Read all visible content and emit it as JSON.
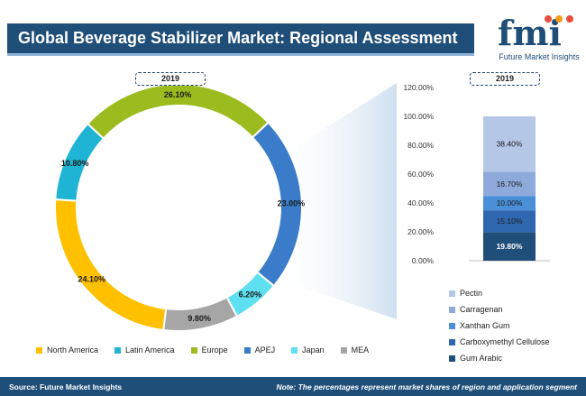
{
  "header": {
    "title": "Global Beverage Stabilizer Market: Regional Assessment",
    "logo_text": "fmi",
    "logo_subtitle": "Future Market Insights"
  },
  "year_left": "2019",
  "year_right": "2019",
  "colors": {
    "header_bg": "#1f4e79",
    "north_america": "#ffc000",
    "latin_america": "#1fb4d4",
    "europe": "#9bbb1f",
    "apej": "#3a7cc9",
    "japan": "#5ee0f0",
    "mea": "#a6a6a6",
    "pectin": "#b4c7e7",
    "carragenan": "#8eaadb",
    "xanthan_gum": "#4a8fd8",
    "carboxymethyl_cellulose": "#2f68b0",
    "gum_arabic": "#1f4e79"
  },
  "chart_data": [
    {
      "type": "pie",
      "variant": "donut",
      "categories": [
        "North America",
        "Latin America",
        "Europe",
        "APEJ",
        "Japan",
        "MEA"
      ],
      "values": [
        24.1,
        10.8,
        26.1,
        23.0,
        6.2,
        9.8
      ],
      "labels": [
        "24.10%",
        "10.80%",
        "26.10%",
        "23.00%",
        "6.20%",
        "9.80%"
      ],
      "legend_position": "bottom"
    },
    {
      "type": "bar",
      "variant": "stacked-100",
      "categories": [
        "2019"
      ],
      "series": [
        {
          "name": "Gum Arabic",
          "values": [
            19.8
          ],
          "label": "19.80%"
        },
        {
          "name": "Carboxymethyl Cellulose",
          "values": [
            15.1
          ],
          "label": "15.10%"
        },
        {
          "name": "Xanthan Gum",
          "values": [
            10.0
          ],
          "label": "10.00%"
        },
        {
          "name": "Carragenan",
          "values": [
            16.7
          ],
          "label": "16.70%"
        },
        {
          "name": "Pectin",
          "values": [
            38.4
          ],
          "label": "38.40%"
        }
      ],
      "y_ticks": [
        "0.00%",
        "20.00%",
        "40.00%",
        "60.00%",
        "80.00%",
        "100.00%",
        "120.00%"
      ],
      "ylim": [
        0,
        120
      ],
      "legend_position": "bottom-right"
    }
  ],
  "legend_left": [
    "North America",
    "Latin America",
    "Europe",
    "APEJ",
    "Japan",
    "MEA"
  ],
  "legend_right": [
    "Pectin",
    "Carragenan",
    "Xanthan Gum",
    "Carboxymethyl Cellulose",
    "Gum Arabic"
  ],
  "footer": {
    "source": "Source: Future Market Insights",
    "note": "Note: The percentages represent market shares of region and application segment"
  }
}
